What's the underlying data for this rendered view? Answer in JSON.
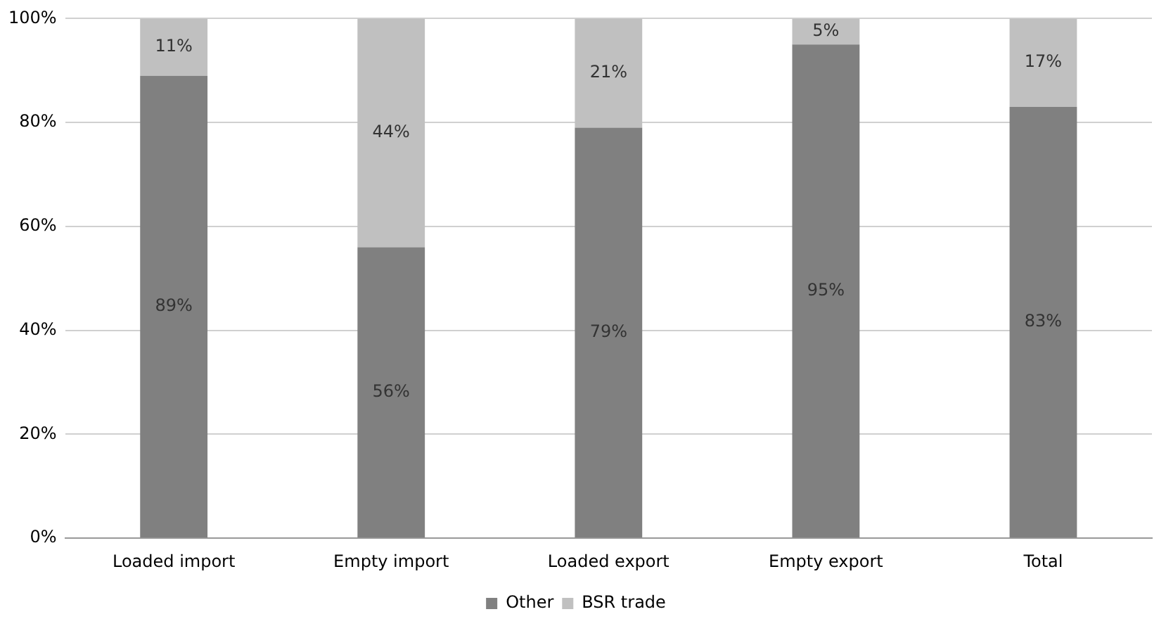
{
  "chart_data": {
    "type": "bar",
    "stacked": true,
    "categories": [
      "Loaded import",
      "Empty import",
      "Loaded export",
      "Empty export",
      "Total"
    ],
    "series": [
      {
        "name": "Other",
        "color": "#808080",
        "values": [
          89,
          56,
          79,
          95,
          83
        ],
        "value_labels": [
          "89%",
          "56%",
          "79%",
          "95%",
          "83%"
        ]
      },
      {
        "name": "BSR trade",
        "color": "#c0c0c0",
        "values": [
          11,
          44,
          21,
          5,
          17
        ],
        "value_labels": [
          "11%",
          "44%",
          "21%",
          "5%",
          "17%"
        ]
      }
    ],
    "ylim": [
      0,
      100
    ],
    "yticks": [
      {
        "value": 0,
        "label": "0%"
      },
      {
        "value": 20,
        "label": "20%"
      },
      {
        "value": 40,
        "label": "40%"
      },
      {
        "value": 60,
        "label": "60%"
      },
      {
        "value": 80,
        "label": "80%"
      },
      {
        "value": 100,
        "label": "100%"
      }
    ],
    "grid": "y",
    "legend": "bottom"
  }
}
